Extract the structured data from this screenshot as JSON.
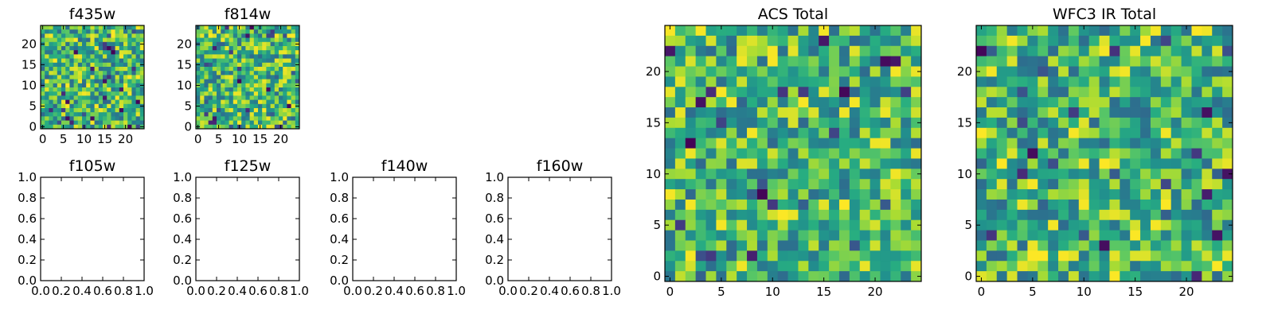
{
  "chart_data": [
    {
      "type": "heatmap",
      "title": "f435w",
      "grid_size": 25,
      "colormap": "viridis",
      "x_ticks": [
        0,
        5,
        10,
        15,
        20
      ],
      "y_ticks": [
        0,
        5,
        10,
        15,
        20
      ],
      "xlim": [
        -0.5,
        24.5
      ],
      "ylim": [
        -0.5,
        24.5
      ]
    },
    {
      "type": "heatmap",
      "title": "f814w",
      "grid_size": 25,
      "colormap": "viridis",
      "x_ticks": [
        0,
        5,
        10,
        15,
        20
      ],
      "y_ticks": [
        0,
        5,
        10,
        15,
        20
      ],
      "xlim": [
        -0.5,
        24.5
      ],
      "ylim": [
        -0.5,
        24.5
      ]
    },
    {
      "type": "heatmap",
      "title": "f105w",
      "empty": true,
      "x_ticks": [
        0.0,
        0.2,
        0.4,
        0.6,
        0.8,
        1.0
      ],
      "y_ticks": [
        0.0,
        0.2,
        0.4,
        0.6,
        0.8,
        1.0
      ],
      "xlim": [
        0,
        1
      ],
      "ylim": [
        0,
        1
      ]
    },
    {
      "type": "heatmap",
      "title": "f125w",
      "empty": true,
      "x_ticks": [
        0.0,
        0.2,
        0.4,
        0.6,
        0.8,
        1.0
      ],
      "y_ticks": [
        0.0,
        0.2,
        0.4,
        0.6,
        0.8,
        1.0
      ],
      "xlim": [
        0,
        1
      ],
      "ylim": [
        0,
        1
      ]
    },
    {
      "type": "heatmap",
      "title": "f140w",
      "empty": true,
      "x_ticks": [
        0.0,
        0.2,
        0.4,
        0.6,
        0.8,
        1.0
      ],
      "y_ticks": [
        0.0,
        0.2,
        0.4,
        0.6,
        0.8,
        1.0
      ],
      "xlim": [
        0,
        1
      ],
      "ylim": [
        0,
        1
      ]
    },
    {
      "type": "heatmap",
      "title": "f160w",
      "empty": true,
      "x_ticks": [
        0.0,
        0.2,
        0.4,
        0.6,
        0.8,
        1.0
      ],
      "y_ticks": [
        0.0,
        0.2,
        0.4,
        0.6,
        0.8,
        1.0
      ],
      "xlim": [
        0,
        1
      ],
      "ylim": [
        0,
        1
      ]
    },
    {
      "type": "heatmap",
      "title": "ACS Total",
      "grid_size": 25,
      "colormap": "viridis",
      "x_ticks": [
        0,
        5,
        10,
        15,
        20
      ],
      "y_ticks": [
        0,
        5,
        10,
        15,
        20
      ],
      "xlim": [
        -0.5,
        24.5
      ],
      "ylim": [
        -0.5,
        24.5
      ]
    },
    {
      "type": "heatmap",
      "title": "WFC3 IR Total",
      "grid_size": 25,
      "colormap": "viridis",
      "x_ticks": [
        0,
        5,
        10,
        15,
        20
      ],
      "y_ticks": [
        0,
        5,
        10,
        15,
        20
      ],
      "xlim": [
        -0.5,
        24.5
      ],
      "ylim": [
        -0.5,
        24.5
      ]
    }
  ]
}
